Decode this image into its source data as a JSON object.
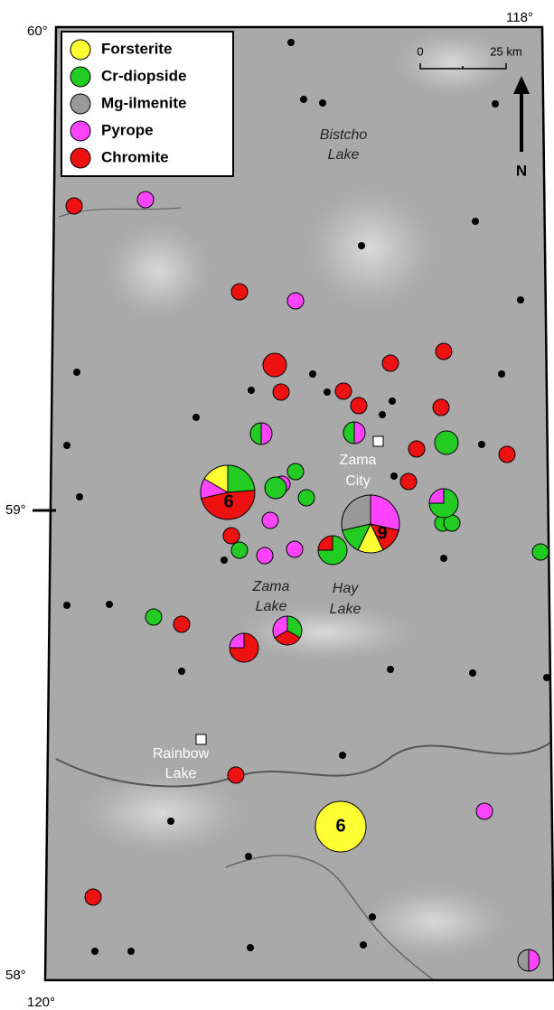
{
  "legend": {
    "items": [
      "Forsterite",
      "Cr-diopside",
      "Mg-ilmenite",
      "Pyrope",
      "Chromite"
    ]
  },
  "scale": {
    "start": "0",
    "end": "25 km"
  },
  "north": "N",
  "coordinates": {
    "top_left": "60°",
    "top_right": "118°",
    "middle_left": "59°",
    "bottom_left": "58°",
    "bottom": "120°"
  },
  "places": {
    "bistcho": [
      "Bistcho",
      "Lake"
    ],
    "zama_city": [
      "Zama",
      "City"
    ],
    "zama_lake": [
      "Zama",
      "Lake"
    ],
    "hay_lake": [
      "Hay",
      "Lake"
    ],
    "rainbow_lake": [
      "Rainbow",
      "Lake"
    ]
  },
  "counts": [
    "6",
    "9",
    "6"
  ]
}
